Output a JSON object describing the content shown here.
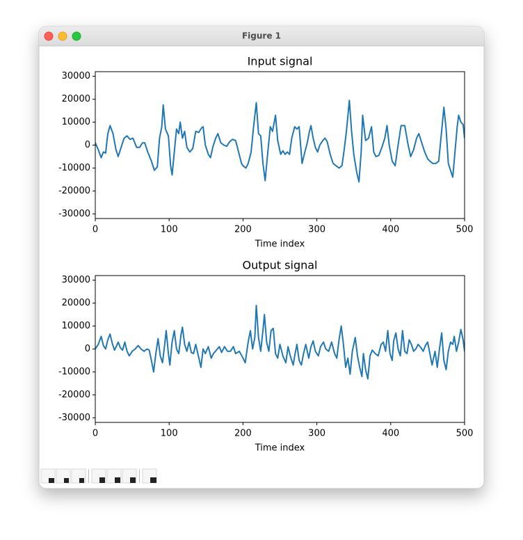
{
  "window": {
    "title": "Figure 1"
  },
  "chart_data": [
    {
      "type": "line",
      "title": "Input signal",
      "x_label": "Time index",
      "color": "#1f77b4",
      "xlim": [
        0,
        500
      ],
      "ylim": [
        -32000,
        32000
      ],
      "xticks": [
        0,
        100,
        200,
        300,
        400,
        500
      ],
      "yticks": [
        -30000,
        -20000,
        -10000,
        0,
        10000,
        20000,
        30000
      ],
      "x": [
        0,
        4,
        8,
        11,
        14,
        17,
        20,
        24,
        28,
        31,
        35,
        39,
        43,
        47,
        51,
        56,
        60,
        64,
        67,
        71,
        76,
        80,
        84,
        87,
        90,
        92,
        95,
        99,
        102,
        104,
        107,
        110,
        113,
        115,
        118,
        121,
        124,
        128,
        132,
        136,
        140,
        144,
        146,
        149,
        153,
        156,
        159,
        163,
        166,
        170,
        174,
        178,
        182,
        186,
        190,
        194,
        198,
        200,
        204,
        207,
        211,
        214,
        218,
        221,
        224,
        227,
        230,
        233,
        237,
        240,
        244,
        247,
        251,
        254,
        257,
        260,
        263,
        266,
        270,
        273,
        276,
        280,
        283,
        287,
        290,
        292,
        295,
        298,
        301,
        304,
        308,
        311,
        314,
        318,
        322,
        326,
        330,
        334,
        337,
        340,
        344,
        347,
        350,
        354,
        357,
        360,
        362,
        366,
        370,
        374,
        377,
        380,
        384,
        388,
        392,
        395,
        398,
        402,
        406,
        410,
        414,
        419,
        423,
        427,
        431,
        435,
        438,
        442,
        446,
        450,
        453,
        457,
        461,
        465,
        468,
        472,
        475,
        478,
        481,
        484,
        487,
        490,
        492,
        495,
        498,
        500
      ],
      "values": [
        1000,
        -2000,
        -5500,
        -3000,
        -3500,
        5000,
        8500,
        5000,
        -2000,
        -5000,
        -1000,
        3000,
        4000,
        2500,
        3000,
        -1000,
        -1000,
        1000,
        1000,
        -3000,
        -7000,
        -11000,
        -9500,
        3000,
        8000,
        17500,
        7000,
        4000,
        -9000,
        -13000,
        -3000,
        7000,
        5000,
        10000,
        3000,
        6000,
        -1000,
        -3000,
        -1500,
        6000,
        5500,
        7500,
        8000,
        0,
        -4000,
        -5500,
        -1000,
        3000,
        5000,
        1000,
        0,
        -500,
        1500,
        2500,
        2000,
        -3000,
        -8000,
        -9000,
        -10000,
        -8000,
        -3000,
        7000,
        18500,
        5000,
        4000,
        -8000,
        -15500,
        -5000,
        8000,
        6000,
        13000,
        2000,
        -4000,
        -2500,
        -4000,
        -3000,
        -4000,
        3000,
        8000,
        7000,
        8000,
        -8000,
        -4000,
        1000,
        6000,
        8500,
        3000,
        -1000,
        -3000,
        0,
        2000,
        3000,
        1500,
        -4000,
        -8000,
        -9000,
        -10000,
        -9000,
        -2000,
        6000,
        19500,
        6000,
        -4000,
        -12000,
        -16000,
        -3000,
        13000,
        2000,
        3000,
        8000,
        -3000,
        -5000,
        -4500,
        -1000,
        3000,
        8500,
        0,
        -7000,
        -9000,
        0,
        8500,
        8500,
        1000,
        -5000,
        -2000,
        3000,
        5000,
        1000,
        -3000,
        -6000,
        -7000,
        -8000,
        -8000,
        -7000,
        3000,
        16500,
        7000,
        -8000,
        -11000,
        -14000,
        -3000,
        8000,
        13000,
        10000,
        9000,
        3000
      ]
    },
    {
      "type": "line",
      "title": "Output signal",
      "x_label": "Time index",
      "color": "#1f77b4",
      "xlim": [
        0,
        500
      ],
      "ylim": [
        -32000,
        32000
      ],
      "xticks": [
        0,
        100,
        200,
        300,
        400,
        500
      ],
      "yticks": [
        -30000,
        -20000,
        -10000,
        0,
        10000,
        20000,
        30000
      ],
      "x": [
        0,
        4,
        8,
        11,
        14,
        17,
        20,
        23,
        26,
        29,
        31,
        34,
        37,
        40,
        43,
        46,
        50,
        54,
        58,
        62,
        66,
        70,
        73,
        76,
        79,
        82,
        85,
        88,
        91,
        94,
        96,
        99,
        101,
        104,
        107,
        110,
        113,
        116,
        118,
        121,
        124,
        127,
        130,
        133,
        136,
        141,
        143,
        146,
        149,
        153,
        157,
        160,
        164,
        168,
        171,
        175,
        179,
        183,
        187,
        190,
        195,
        200,
        203,
        207,
        210,
        213,
        216,
        218,
        221,
        224,
        227,
        229,
        232,
        235,
        238,
        241,
        244,
        247,
        250,
        254,
        258,
        261,
        264,
        268,
        270,
        273,
        276,
        279,
        282,
        285,
        289,
        292,
        295,
        298,
        302,
        305,
        309,
        312,
        316,
        320,
        324,
        327,
        330,
        333,
        336,
        339,
        342,
        345,
        348,
        352,
        355,
        358,
        361,
        363,
        366,
        369,
        372,
        375,
        379,
        383,
        387,
        390,
        393,
        396,
        399,
        402,
        404,
        407,
        410,
        413,
        416,
        419,
        422,
        425,
        428,
        431,
        434,
        437,
        441,
        444,
        447,
        450,
        453,
        456,
        458,
        460,
        463,
        466,
        469,
        472,
        475,
        478,
        481,
        484,
        486,
        489,
        492,
        495,
        498,
        500
      ],
      "values": [
        0,
        2000,
        5500,
        1500,
        0,
        4000,
        6500,
        2500,
        -500,
        1500,
        3000,
        500,
        -500,
        3000,
        -1000,
        -3000,
        -1000,
        0,
        1500,
        0,
        -1000,
        0,
        -500,
        -5000,
        -10000,
        -2000,
        4500,
        -3000,
        -6000,
        2000,
        8000,
        -2000,
        -7000,
        3000,
        8000,
        0,
        -2000,
        6000,
        9500,
        2000,
        -1000,
        3000,
        -1500,
        -2000,
        2000,
        -5000,
        -8000,
        0,
        -2000,
        1000,
        -4000,
        -2000,
        -500,
        1000,
        -1500,
        1000,
        -1000,
        -1000,
        1000,
        -2000,
        -1000,
        -4000,
        -6000,
        3000,
        8000,
        0,
        5000,
        19000,
        5000,
        -1000,
        8000,
        15000,
        3000,
        -1000,
        8000,
        9000,
        -2000,
        -4000,
        2000,
        -3000,
        -6000,
        1000,
        -3000,
        -7000,
        -3000,
        2000,
        -5000,
        -7000,
        -2000,
        2000,
        -4000,
        1000,
        3500,
        -1000,
        -3000,
        1000,
        3000,
        0,
        -1000,
        3000,
        -2000,
        -4000,
        4000,
        10000,
        2000,
        -8000,
        -4000,
        -11000,
        -1000,
        5000,
        -3000,
        -8000,
        -12000,
        -2000,
        -9000,
        -13000,
        -3000,
        -500,
        -2000,
        -3000,
        2000,
        3000,
        -1000,
        8000,
        -2000,
        -5000,
        3500,
        7000,
        0,
        -3000,
        8000,
        -1000,
        -2000,
        4000,
        2000,
        -1000,
        0,
        2000,
        500,
        -1000,
        1500,
        3000,
        -2000,
        -7000,
        -4000,
        -1000,
        -8000,
        0,
        7000,
        -5000,
        -9000,
        -1000,
        3000,
        2000,
        5500,
        -1000,
        3000,
        8500,
        4000,
        -1000
      ]
    }
  ]
}
